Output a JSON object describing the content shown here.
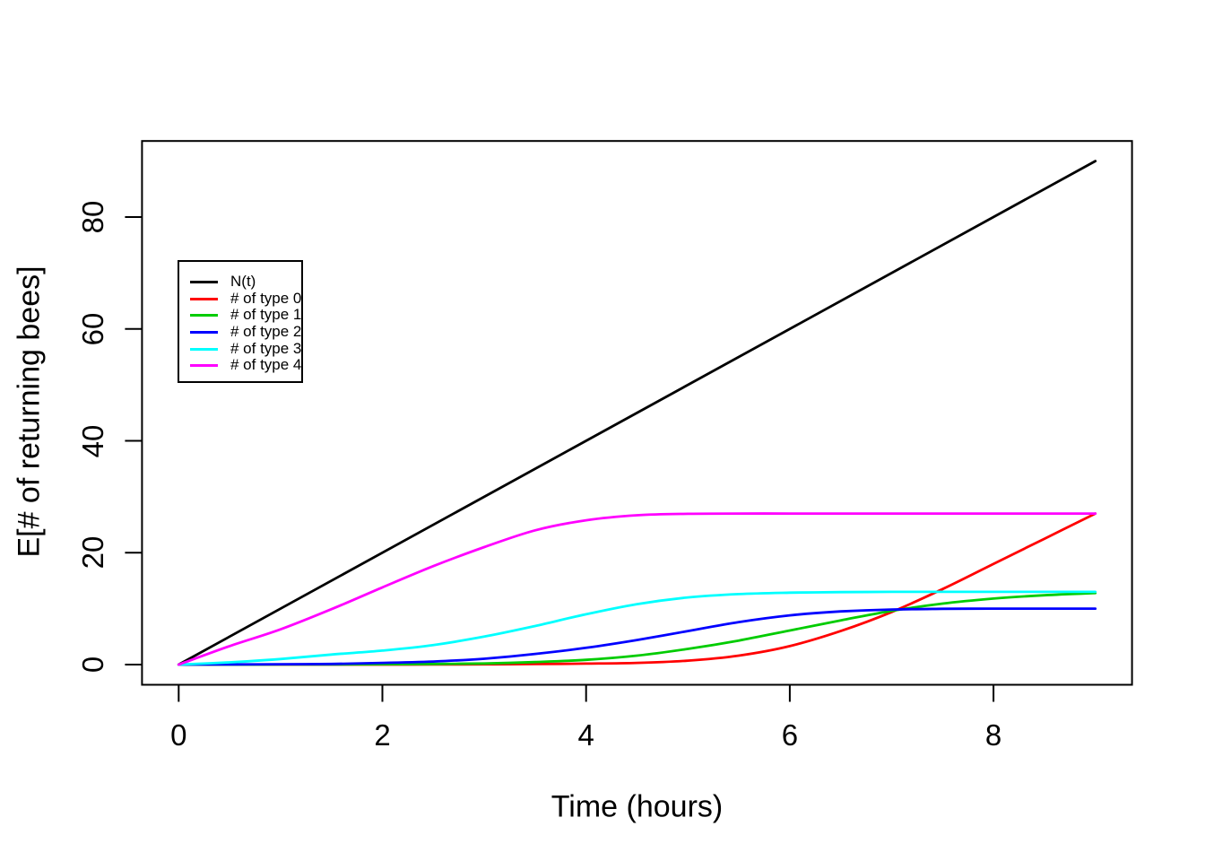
{
  "chart_data": {
    "type": "line",
    "title": "",
    "xlabel": "Time (hours)",
    "ylabel": "E[# of returning bees]",
    "xlim": [
      0,
      9
    ],
    "ylim": [
      0,
      90
    ],
    "xticks": [
      0,
      2,
      4,
      6,
      8
    ],
    "yticks": [
      0,
      20,
      40,
      60,
      80
    ],
    "grid": "off",
    "legend_position": "inset-upper-left",
    "series": [
      {
        "name": "N(t)",
        "color": "#000000",
        "points": [
          [
            0,
            0
          ],
          [
            9,
            90
          ]
        ]
      },
      {
        "name": "# of type 0",
        "color": "#FF0000",
        "points": [
          [
            0,
            0
          ],
          [
            0.5,
            0
          ],
          [
            1,
            0
          ],
          [
            1.5,
            0
          ],
          [
            2,
            0
          ],
          [
            2.5,
            0.02
          ],
          [
            3,
            0.05
          ],
          [
            3.5,
            0.1
          ],
          [
            4,
            0.17
          ],
          [
            4.5,
            0.3
          ],
          [
            5,
            0.7
          ],
          [
            5.5,
            1.6
          ],
          [
            6,
            3.3
          ],
          [
            6.5,
            6.0
          ],
          [
            7,
            9.4
          ],
          [
            7.5,
            13.5
          ],
          [
            8,
            18.0
          ],
          [
            8.5,
            22.5
          ],
          [
            9,
            27
          ]
        ]
      },
      {
        "name": "# of type 1",
        "color": "#00CC00",
        "points": [
          [
            0,
            0
          ],
          [
            0.5,
            0
          ],
          [
            1,
            0.01
          ],
          [
            1.5,
            0.02
          ],
          [
            2,
            0.06
          ],
          [
            2.5,
            0.12
          ],
          [
            3,
            0.2
          ],
          [
            3.5,
            0.45
          ],
          [
            4,
            0.85
          ],
          [
            4.5,
            1.6
          ],
          [
            5,
            2.8
          ],
          [
            5.5,
            4.3
          ],
          [
            6,
            6.1
          ],
          [
            6.5,
            7.9
          ],
          [
            7,
            9.6
          ],
          [
            7.5,
            10.9
          ],
          [
            8,
            11.8
          ],
          [
            8.5,
            12.4
          ],
          [
            9,
            12.8
          ]
        ]
      },
      {
        "name": "# of type 2",
        "color": "#0000FF",
        "points": [
          [
            0,
            0
          ],
          [
            0.5,
            0.03
          ],
          [
            1,
            0.06
          ],
          [
            1.5,
            0.12
          ],
          [
            2,
            0.3
          ],
          [
            2.5,
            0.55
          ],
          [
            3,
            1.05
          ],
          [
            3.5,
            1.9
          ],
          [
            4,
            3.0
          ],
          [
            4.5,
            4.4
          ],
          [
            5,
            6.0
          ],
          [
            5.5,
            7.6
          ],
          [
            6,
            8.8
          ],
          [
            6.5,
            9.5
          ],
          [
            7,
            9.85
          ],
          [
            7.5,
            9.97
          ],
          [
            8,
            10
          ],
          [
            8.5,
            10
          ],
          [
            9,
            10
          ]
        ]
      },
      {
        "name": "# of type 3",
        "color": "#00FFFF",
        "points": [
          [
            0,
            0
          ],
          [
            0.5,
            0.4
          ],
          [
            1,
            1.0
          ],
          [
            1.5,
            1.8
          ],
          [
            2,
            2.5
          ],
          [
            2.5,
            3.5
          ],
          [
            3,
            5.0
          ],
          [
            3.5,
            6.9
          ],
          [
            4,
            9.0
          ],
          [
            4.5,
            10.8
          ],
          [
            5,
            12.0
          ],
          [
            5.5,
            12.6
          ],
          [
            6,
            12.85
          ],
          [
            6.5,
            12.95
          ],
          [
            7,
            13
          ],
          [
            7.5,
            13
          ],
          [
            8,
            13
          ],
          [
            8.5,
            13
          ],
          [
            9,
            13
          ]
        ]
      },
      {
        "name": "# of type 4",
        "color": "#FF00FF",
        "points": [
          [
            0,
            0
          ],
          [
            0.5,
            3.3
          ],
          [
            1,
            6.3
          ],
          [
            1.5,
            9.9
          ],
          [
            2,
            13.8
          ],
          [
            2.5,
            17.6
          ],
          [
            3,
            21.0
          ],
          [
            3.5,
            24.0
          ],
          [
            4,
            25.8
          ],
          [
            4.5,
            26.7
          ],
          [
            5,
            26.95
          ],
          [
            5.5,
            27
          ],
          [
            6,
            27
          ],
          [
            6.5,
            27
          ],
          [
            7,
            27
          ],
          [
            7.5,
            27
          ],
          [
            8,
            27
          ],
          [
            8.5,
            27
          ],
          [
            9,
            27
          ]
        ]
      }
    ]
  }
}
